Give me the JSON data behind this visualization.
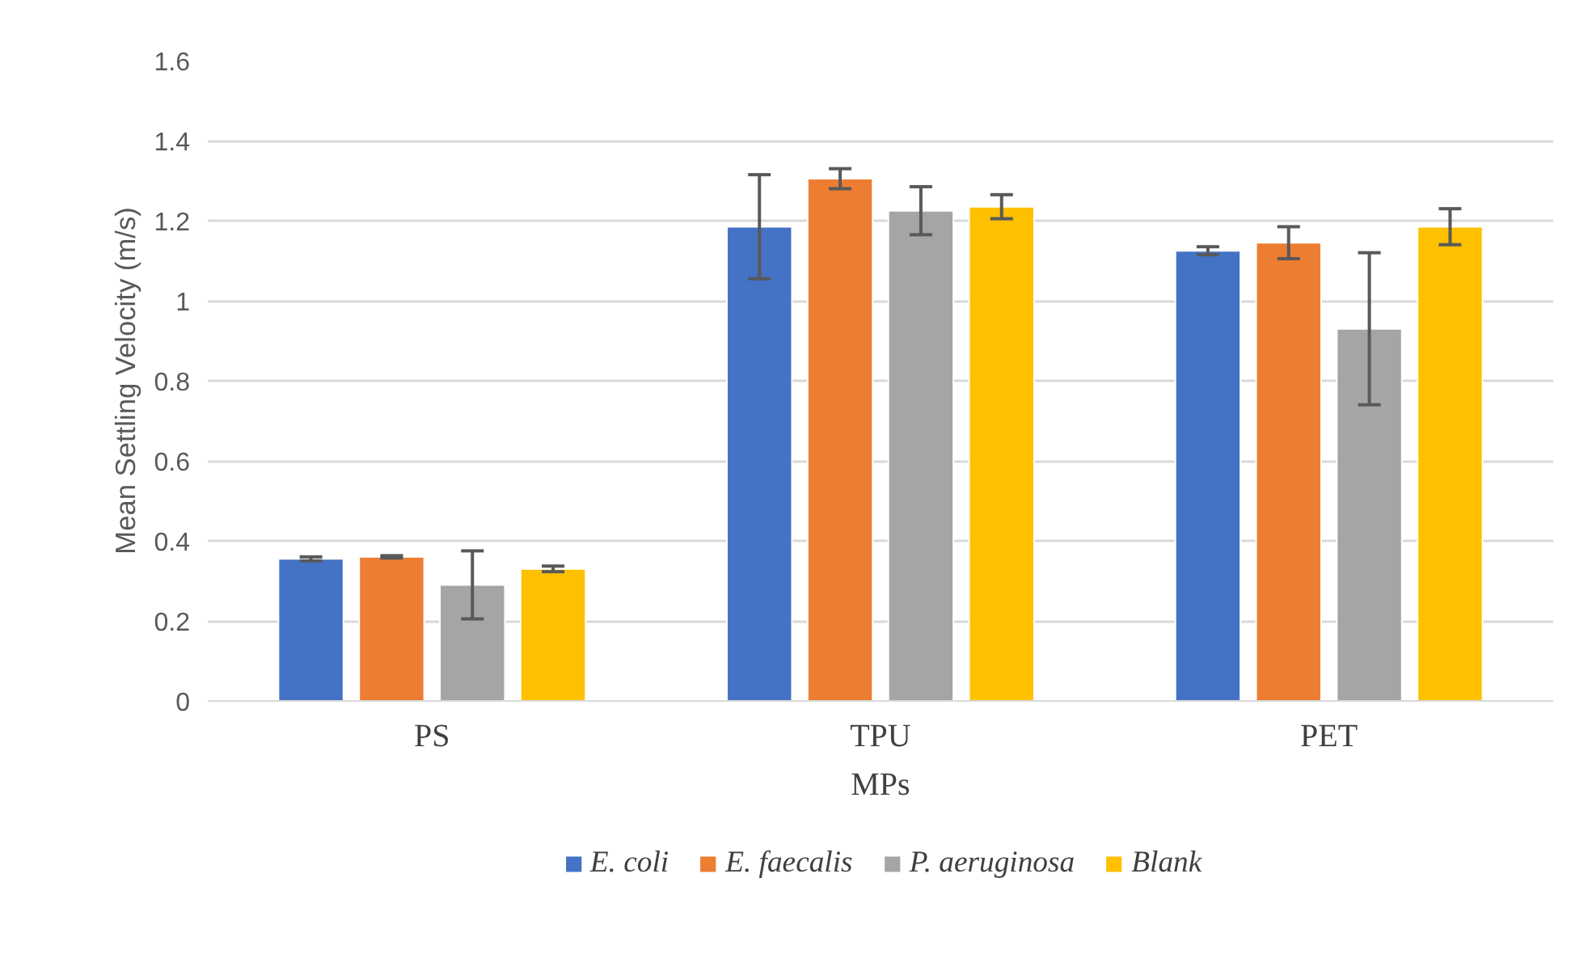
{
  "chart_data": {
    "type": "bar",
    "xlabel": "MPs",
    "ylabel": "Mean Settling Velocity (m/s)",
    "categories": [
      "PS",
      "TPU",
      "PET"
    ],
    "series": [
      {
        "name": "E. coli",
        "color": "#4472c4",
        "values": [
          0.355,
          1.185,
          1.125
        ],
        "errors": [
          0.005,
          0.13,
          0.01
        ]
      },
      {
        "name": "E. faecalis",
        "color": "#ed7d31",
        "values": [
          0.36,
          1.305,
          1.145
        ],
        "errors": [
          0.003,
          0.025,
          0.04
        ]
      },
      {
        "name": "P. aeruginosa",
        "color": "#a5a5a5",
        "values": [
          0.29,
          1.225,
          0.93
        ],
        "errors": [
          0.085,
          0.06,
          0.19
        ]
      },
      {
        "name": "Blank",
        "color": "#ffc000",
        "values": [
          0.33,
          1.235,
          1.185
        ],
        "errors": [
          0.007,
          0.03,
          0.045
        ]
      }
    ],
    "ylim": [
      0,
      1.6
    ],
    "yticks": [
      0,
      0.2,
      0.4,
      0.6,
      0.8,
      1,
      1.2,
      1.4,
      1.6
    ],
    "grid": "y",
    "legend": "bottom"
  }
}
